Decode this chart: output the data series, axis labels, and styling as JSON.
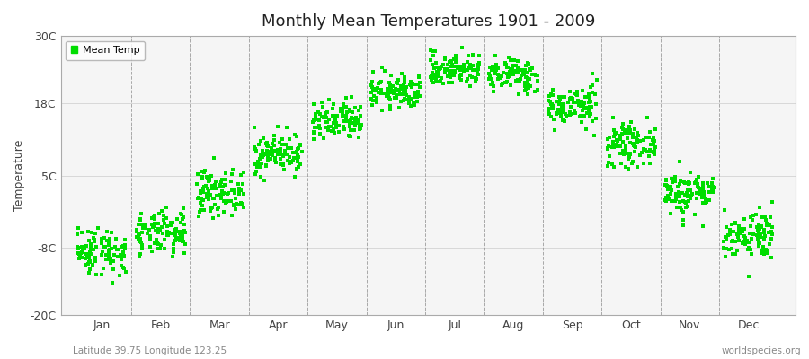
{
  "title": "Monthly Mean Temperatures 1901 - 2009",
  "ylabel": "Temperature",
  "xlabel_bottom_left": "Latitude 39.75 Longitude 123.25",
  "xlabel_bottom_right": "worldspecies.org",
  "legend_label": "Mean Temp",
  "yticks": [
    -20,
    -8,
    5,
    18,
    30
  ],
  "ytick_labels": [
    "-20C",
    "-8C",
    "5C",
    "18C",
    "30C"
  ],
  "ylim": [
    -20,
    30
  ],
  "months": [
    "Jan",
    "Feb",
    "Mar",
    "Apr",
    "May",
    "Jun",
    "Jul",
    "Aug",
    "Sep",
    "Oct",
    "Nov",
    "Dec"
  ],
  "dot_color": "#00dd00",
  "bg_color": "#ffffff",
  "plot_bg_color": "#f5f5f5",
  "n_years": 109,
  "monthly_means": [
    -8.5,
    -5.5,
    2.0,
    9.0,
    14.5,
    20.0,
    24.0,
    23.0,
    17.5,
    10.5,
    2.0,
    -5.5
  ],
  "monthly_stds": [
    2.2,
    2.0,
    2.0,
    1.8,
    1.8,
    1.5,
    1.5,
    1.5,
    1.8,
    1.8,
    2.0,
    2.2
  ],
  "seed": 42
}
